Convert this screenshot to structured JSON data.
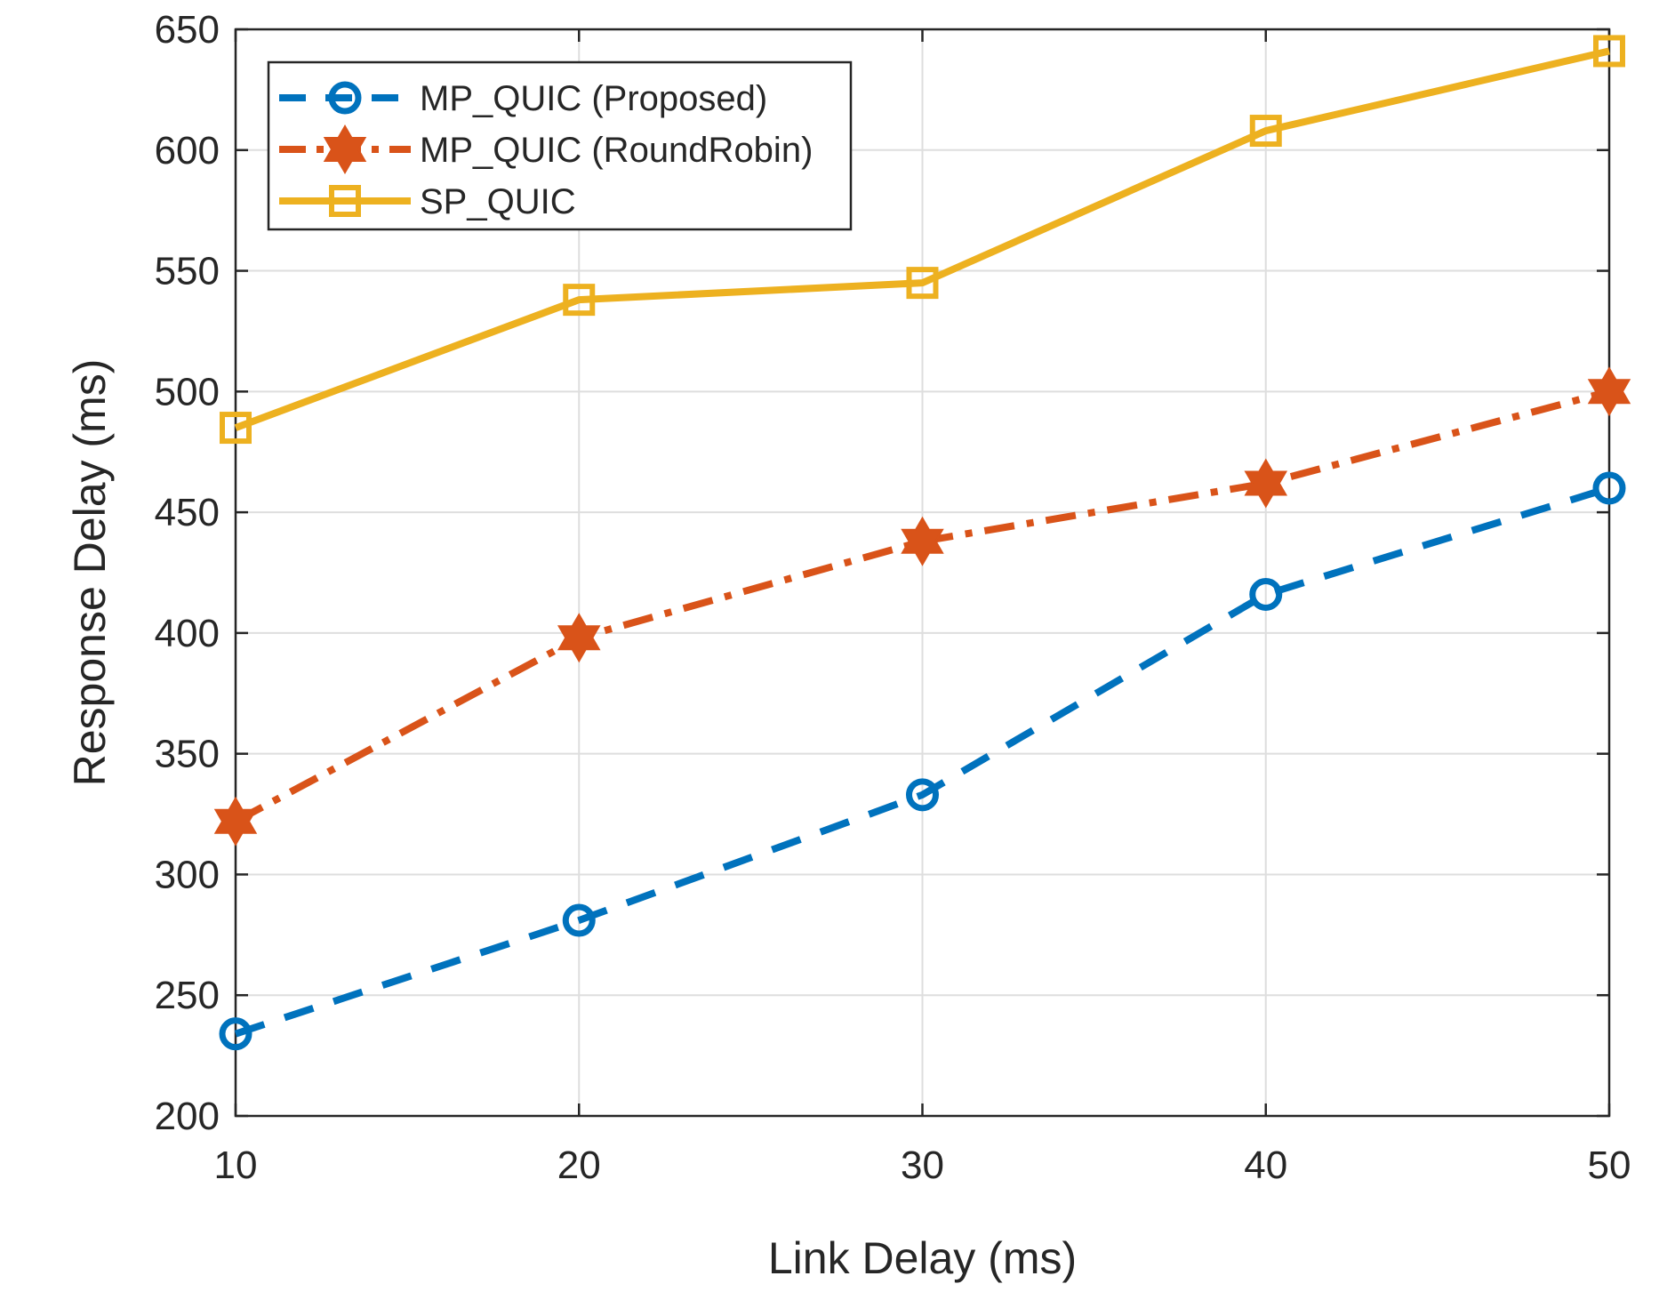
{
  "chart_data": {
    "type": "line",
    "title": "",
    "xlabel": "Link Delay (ms)",
    "ylabel": "Response Delay (ms)",
    "x": [
      10,
      20,
      30,
      40,
      50
    ],
    "xlim": [
      10,
      50
    ],
    "ylim": [
      200,
      650
    ],
    "xticks": [
      10,
      20,
      30,
      40,
      50
    ],
    "yticks": [
      200,
      250,
      300,
      350,
      400,
      450,
      500,
      550,
      600,
      650
    ],
    "grid": true,
    "legend_position": "top-left",
    "series": [
      {
        "name": "MP_QUIC (Proposed)",
        "values": [
          234,
          281,
          333,
          416,
          460
        ],
        "color": "#0072BD",
        "line_style": "dashed",
        "marker": "circle"
      },
      {
        "name": "MP_QUIC (RoundRobin)",
        "values": [
          322,
          398,
          438,
          462,
          500
        ],
        "color": "#D95319",
        "line_style": "dash-dot",
        "marker": "hexagram"
      },
      {
        "name": "SP_QUIC",
        "values": [
          485,
          538,
          545,
          608,
          641
        ],
        "color": "#EDB120",
        "line_style": "solid",
        "marker": "square"
      }
    ]
  }
}
